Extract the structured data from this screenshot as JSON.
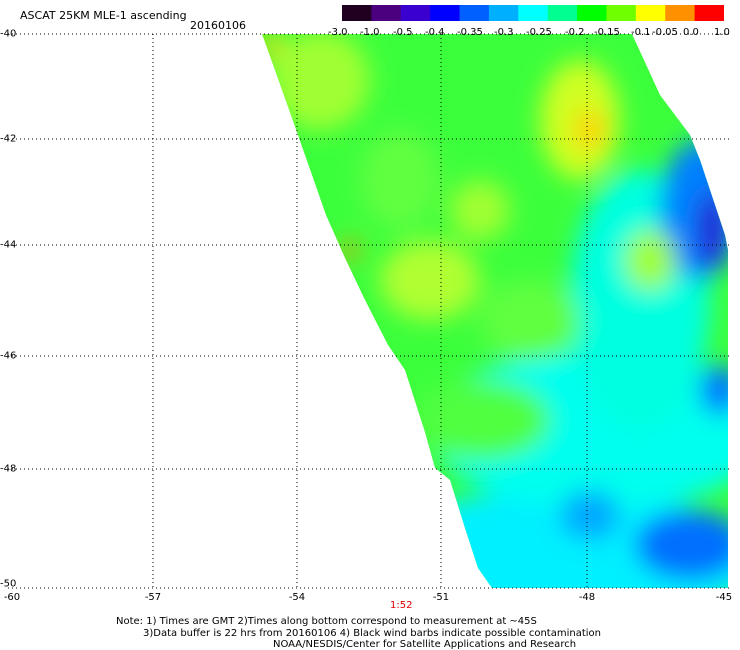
{
  "header": {
    "title": "ASCAT 25KM MLE-1 ascending",
    "date": "20160106"
  },
  "colorbar": {
    "labels": [
      "-3.0",
      "-1.0",
      "-0.5",
      "-0.4",
      "-0.35",
      "-0.3",
      "-0.25",
      "-0.2",
      "-0.15",
      "-0.1",
      "-0.05",
      "0.0",
      "1.0"
    ],
    "colors": [
      "#200020",
      "#4b007f",
      "#3a00d0",
      "#0000ff",
      "#0060ff",
      "#00b0ff",
      "#00ffff",
      "#00ff90",
      "#00ff00",
      "#70ff00",
      "#ffff00",
      "#ff9000",
      "#ff0000"
    ]
  },
  "axes": {
    "x_ticks": [
      "-60",
      "-57",
      "-54",
      "-51",
      "-48",
      "-45"
    ],
    "y_ticks": [
      "-40",
      "-42",
      "-44",
      "-46",
      "-48",
      "-50"
    ],
    "time_label": "1:52"
  },
  "notes": {
    "line1": "Note: 1) Times are GMT 2)Times along bottom correspond to measurement at ~45S",
    "line2": "3)Data buffer is 22 hrs from 20160106 4) Black wind barbs indicate possible contamination",
    "line3": "NOAA/NESDIS/Center for Satellite Applications and Research"
  }
}
